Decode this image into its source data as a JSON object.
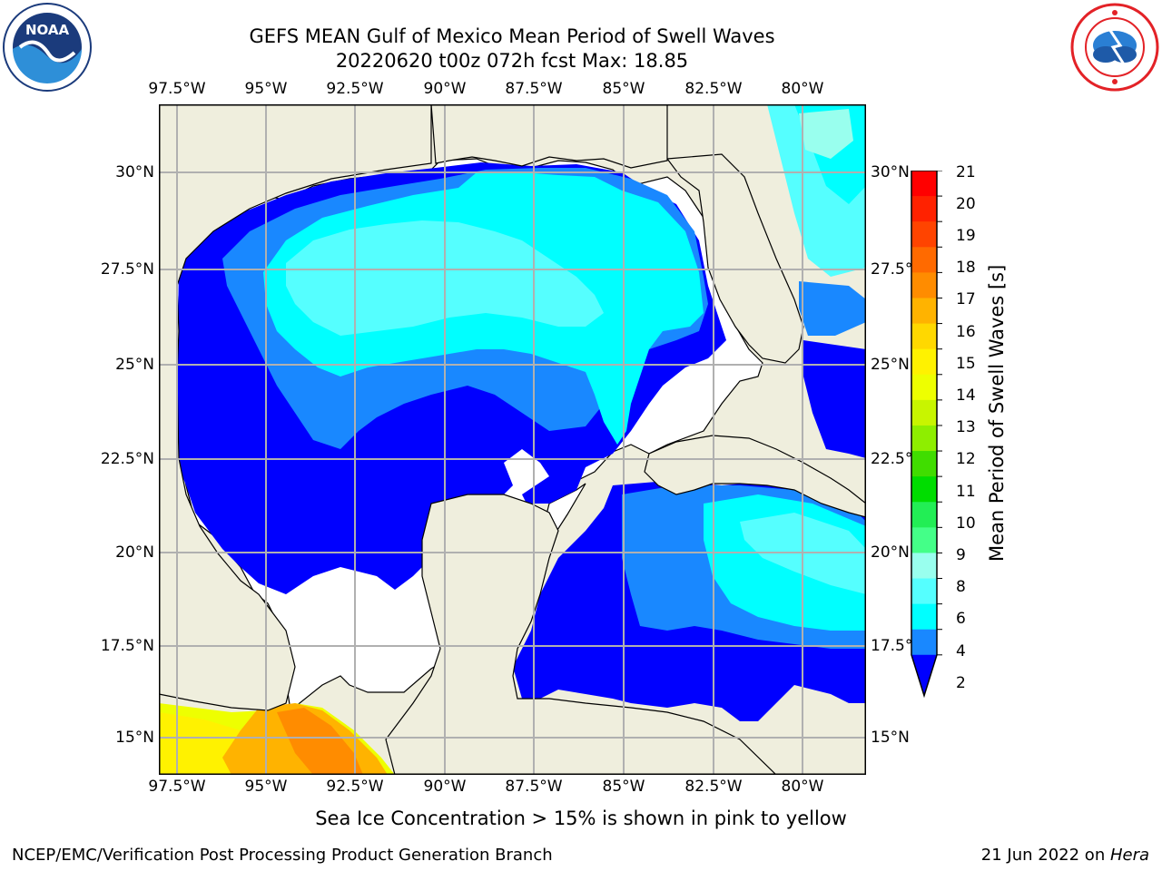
{
  "header": {
    "title_line1": "GEFS MEAN Gulf of Mexico Mean Period of Swell Waves",
    "title_line2": "20220620 t00z 072h fcst   Max: 18.85"
  },
  "logos": {
    "left": {
      "name": "noaa-logo",
      "text": "NOAA",
      "colors": [
        "#1b3b7c",
        "#2e8fd8",
        "#ffffff"
      ]
    },
    "right": {
      "name": "nws-logo",
      "colors": [
        "#e32227",
        "#2a7fd4",
        "#ffffff"
      ]
    }
  },
  "map": {
    "lon_ticks": [
      "97.5°W",
      "95°W",
      "92.5°W",
      "90°W",
      "87.5°W",
      "85°W",
      "82.5°W",
      "80°W"
    ],
    "lat_ticks_left": [
      "30°N",
      "27.5°N",
      "25°N",
      "22.5°N",
      "20°N",
      "17.5°N",
      "15°N"
    ],
    "lat_ticks_right": [
      "30°N",
      "27.5°",
      "25°N",
      "22.5°",
      "20°N",
      "17.5°",
      "15°N"
    ],
    "land_color": "#efeedd",
    "ocean_blank_color": "#ffffff",
    "grid_color": "#b0b0b0"
  },
  "colorbar": {
    "label": "Mean Period of Swell Waves [s]",
    "ticks": [
      "21",
      "20",
      "19",
      "18",
      "17",
      "16",
      "15",
      "14",
      "13",
      "12",
      "11",
      "10",
      "9",
      "8",
      "6",
      "4",
      "2"
    ],
    "colors": [
      "#ff0000",
      "#ff2200",
      "#ff4400",
      "#ff6a00",
      "#ff8c00",
      "#ffb300",
      "#ffd800",
      "#fff200",
      "#eeff00",
      "#c8f500",
      "#8eee00",
      "#40dd00",
      "#00dd00",
      "#22ee55",
      "#44ff88",
      "#99ffee",
      "#55ffff",
      "#00ffff",
      "#1988ff",
      "#0000ff"
    ]
  },
  "footer": {
    "note": "Sea Ice Concentration > 15% is shown in pink to yellow",
    "left": "NCEP/EMC/Verification Post Processing Product Generation Branch",
    "right_prefix": "21 Jun 2022 on ",
    "right_host": "Hera"
  }
}
